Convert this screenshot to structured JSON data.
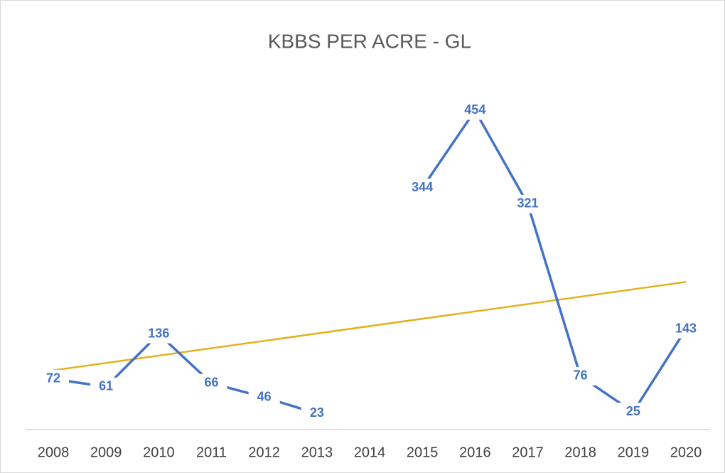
{
  "chart_data": {
    "type": "line",
    "title": "KBBS PER ACRE - GL",
    "categories": [
      "2008",
      "2009",
      "2010",
      "2011",
      "2012",
      "2013",
      "2014",
      "2015",
      "2016",
      "2017",
      "2018",
      "2019",
      "2020"
    ],
    "series": [
      {
        "color": "#4472c4",
        "values": [
          72,
          61,
          136,
          66,
          46,
          23,
          null,
          344,
          454,
          321,
          76,
          25,
          143
        ]
      }
    ],
    "ylim": [
      0,
      500
    ],
    "data_labels": true,
    "trendline": {
      "type": "linear",
      "color": "#e2b21e"
    }
  }
}
